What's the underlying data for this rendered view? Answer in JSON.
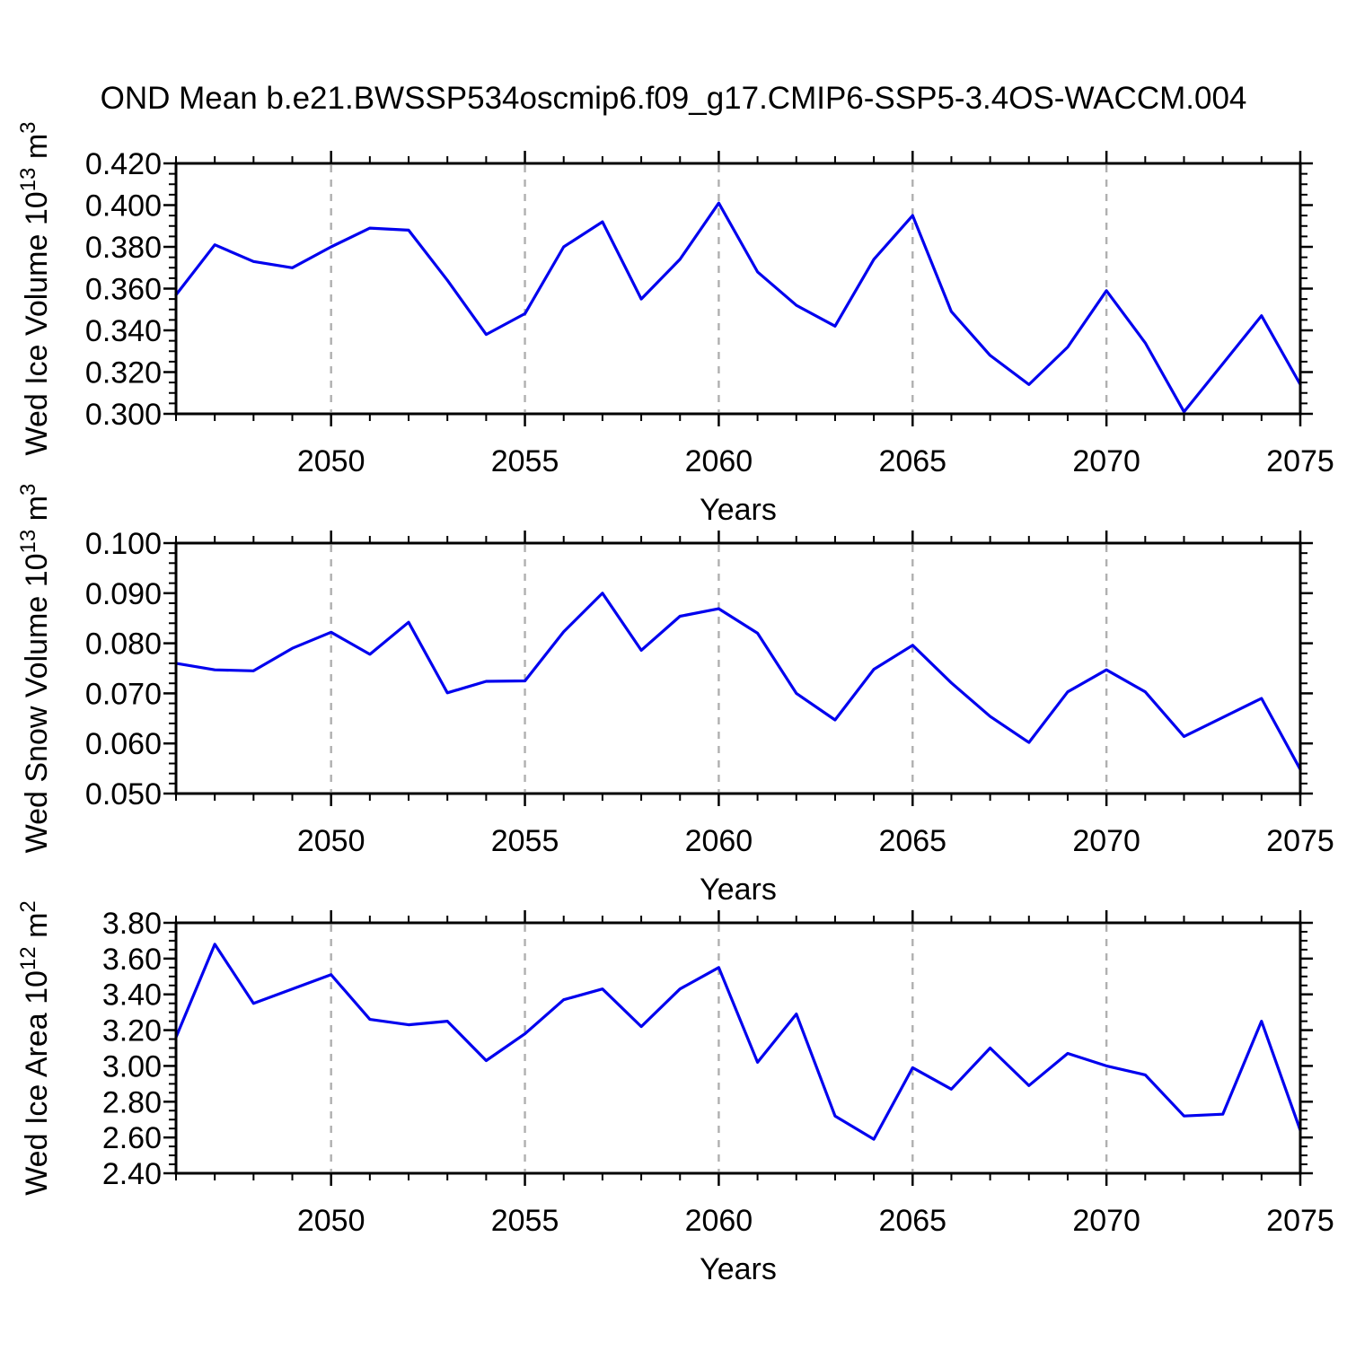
{
  "title": "OND Mean b.e21.BWSSP534oscmip6.f09_g17.CMIP6-SSP5-3.4OS-WACCM.004",
  "style": {
    "line_color": "#0000ee",
    "axis_color": "#000000",
    "grid_color": "#b0b0b0",
    "background": "#ffffff"
  },
  "x_axis": {
    "label": "Years",
    "min": 2046,
    "max": 2075,
    "major_ticks": [
      2050,
      2055,
      2060,
      2065,
      2070,
      2075
    ],
    "minor_step": 1,
    "gridline_years": [
      2050,
      2055,
      2060,
      2065,
      2070
    ]
  },
  "chart_data": [
    {
      "type": "line",
      "name": "wed-ice-volume",
      "ylabel_plain": "Wed Ice Volume 10^13 m^3",
      "ylabel_segments": [
        {
          "t": "Wed Ice Volume 10"
        },
        {
          "t": "13",
          "sup": true
        },
        {
          "t": " m"
        },
        {
          "t": "3",
          "sup": true
        }
      ],
      "xlabel": "Years",
      "ylim": [
        0.3,
        0.42
      ],
      "y_major_step": 0.02,
      "y_minor_step": 0.005,
      "y_decimals": 3,
      "grid": "vertical-dashed",
      "legend": "none",
      "x": [
        2046,
        2047,
        2048,
        2049,
        2050,
        2051,
        2052,
        2053,
        2054,
        2055,
        2056,
        2057,
        2058,
        2059,
        2060,
        2061,
        2062,
        2063,
        2064,
        2065,
        2066,
        2067,
        2068,
        2069,
        2070,
        2071,
        2072,
        2073,
        2074,
        2075
      ],
      "values": [
        0.357,
        0.381,
        0.373,
        0.37,
        0.38,
        0.389,
        0.388,
        0.364,
        0.338,
        0.348,
        0.38,
        0.392,
        0.355,
        0.374,
        0.401,
        0.368,
        0.352,
        0.342,
        0.374,
        0.395,
        0.349,
        0.328,
        0.314,
        0.332,
        0.359,
        0.334,
        0.301,
        0.324,
        0.347,
        0.314
      ]
    },
    {
      "type": "line",
      "name": "wed-snow-volume",
      "ylabel_plain": "Wed Snow Volume 10^13 m^3",
      "ylabel_segments": [
        {
          "t": "Wed Snow Volume 10"
        },
        {
          "t": "13",
          "sup": true
        },
        {
          "t": " m"
        },
        {
          "t": "3",
          "sup": true
        }
      ],
      "xlabel": "Years",
      "ylim": [
        0.05,
        0.1
      ],
      "y_major_step": 0.01,
      "y_minor_step": 0.002,
      "y_decimals": 3,
      "grid": "vertical-dashed",
      "legend": "none",
      "x": [
        2046,
        2047,
        2048,
        2049,
        2050,
        2051,
        2052,
        2053,
        2054,
        2055,
        2056,
        2057,
        2058,
        2059,
        2060,
        2061,
        2062,
        2063,
        2064,
        2065,
        2066,
        2067,
        2068,
        2069,
        2070,
        2071,
        2072,
        2073,
        2074,
        2075
      ],
      "values": [
        0.076,
        0.0747,
        0.0745,
        0.079,
        0.0822,
        0.0778,
        0.0842,
        0.0701,
        0.0724,
        0.0725,
        0.0823,
        0.09,
        0.0786,
        0.0854,
        0.0869,
        0.082,
        0.07,
        0.0647,
        0.0748,
        0.0796,
        0.0721,
        0.0654,
        0.0602,
        0.0703,
        0.0747,
        0.0703,
        0.0614,
        0.0652,
        0.069,
        0.0548
      ]
    },
    {
      "type": "line",
      "name": "wed-ice-area",
      "ylabel_plain": "Wed Ice Area 10^12 m^2",
      "ylabel_segments": [
        {
          "t": "Wed Ice Area 10"
        },
        {
          "t": "12",
          "sup": true
        },
        {
          "t": " m"
        },
        {
          "t": "2",
          "sup": true
        }
      ],
      "xlabel": "Years",
      "ylim": [
        2.4,
        3.8
      ],
      "y_major_step": 0.2,
      "y_minor_step": 0.05,
      "y_decimals": 2,
      "grid": "vertical-dashed",
      "legend": "none",
      "x": [
        2046,
        2047,
        2048,
        2049,
        2050,
        2051,
        2052,
        2053,
        2054,
        2055,
        2056,
        2057,
        2058,
        2059,
        2060,
        2061,
        2062,
        2063,
        2064,
        2065,
        2066,
        2067,
        2068,
        2069,
        2070,
        2071,
        2072,
        2073,
        2074,
        2075
      ],
      "values": [
        3.16,
        3.68,
        3.35,
        3.43,
        3.51,
        3.26,
        3.23,
        3.25,
        3.03,
        3.18,
        3.37,
        3.43,
        3.22,
        3.43,
        3.55,
        3.02,
        3.29,
        2.72,
        2.59,
        2.99,
        2.87,
        3.1,
        2.89,
        3.07,
        3.0,
        2.95,
        2.72,
        2.73,
        3.25,
        2.64
      ]
    }
  ]
}
